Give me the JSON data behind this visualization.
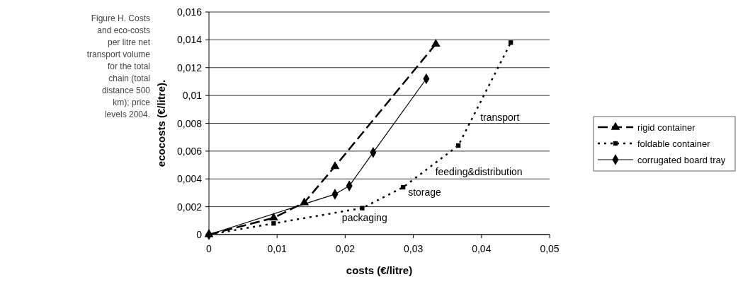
{
  "chart_data": {
    "type": "line",
    "xlabel": "costs (€/litre)",
    "ylabel": "ecocosts (€/litre).",
    "xlim": [
      0,
      0.05
    ],
    "xticks": [
      {
        "value": 0,
        "label": "0"
      },
      {
        "value": 0.01,
        "label": "0,01"
      },
      {
        "value": 0.02,
        "label": "0,02"
      },
      {
        "value": 0.03,
        "label": "0,03"
      },
      {
        "value": 0.04,
        "label": "0,04"
      },
      {
        "value": 0.05,
        "label": "0,05"
      }
    ],
    "ylim": [
      0,
      0.016
    ],
    "yticks": [
      {
        "value": 0,
        "label": "0"
      },
      {
        "value": 0.002,
        "label": "0,002"
      },
      {
        "value": 0.004,
        "label": "0,004"
      },
      {
        "value": 0.006,
        "label": "0,006"
      },
      {
        "value": 0.008,
        "label": "0,008"
      },
      {
        "value": 0.01,
        "label": "0,01"
      },
      {
        "value": 0.012,
        "label": "0,012"
      },
      {
        "value": 0.014,
        "label": "0,014"
      },
      {
        "value": 0.016,
        "label": "0,016"
      }
    ],
    "grid": "y",
    "legend": "right",
    "series": [
      {
        "name": "rigid container",
        "color": "#000000",
        "marker": "triangle",
        "line_style": "dashed",
        "x": [
          0,
          0.0095,
          0.014,
          0.0185,
          0.0333
        ],
        "values": [
          0,
          0.0012,
          0.0023,
          0.0049,
          0.0137
        ]
      },
      {
        "name": "foldable container",
        "color": "#000000",
        "marker": "square",
        "line_style": "dotted",
        "x": [
          0,
          0.0095,
          0.0225,
          0.0285,
          0.0366,
          0.0443
        ],
        "values": [
          0,
          0.0008,
          0.0019,
          0.0034,
          0.0064,
          0.0138
        ]
      },
      {
        "name": "corrugated board tray",
        "color": "#000000",
        "marker": "diamond",
        "line_style": "solid",
        "x": [
          0,
          0.0185,
          0.0206,
          0.0241,
          0.0319
        ],
        "values": [
          0,
          0.0029,
          0.0035,
          0.0059,
          0.0112
        ]
      }
    ],
    "annotations": [
      "Figure H. Costs and eco-costs per litre net transport volume for the total chain (total distance 500 km); price levels 2004.",
      {
        "text": "transport",
        "x": 0.0391,
        "y": 0.0088
      },
      {
        "text": "feeding&distribution",
        "x": 0.0325,
        "y": 0.0049
      },
      {
        "text": "storage",
        "x": 0.0285,
        "y": 0.0034
      },
      {
        "text": "packaging",
        "x": 0.0188,
        "y": 0.0016
      }
    ]
  }
}
